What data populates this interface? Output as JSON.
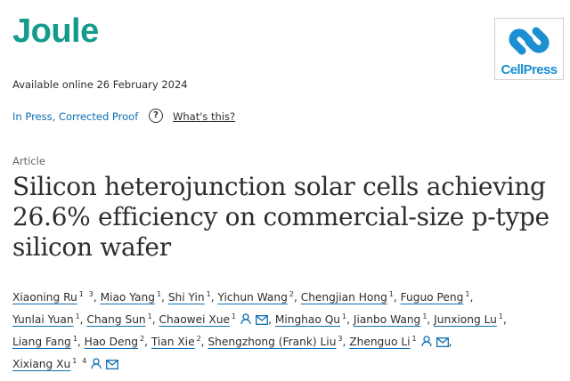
{
  "header": {
    "journal": "Joule",
    "publisher_logo": "CellPress",
    "available": "Available online 26 February 2024",
    "status": "In Press, Corrected Proof",
    "help_icon": "?",
    "help_link": "What's this?"
  },
  "article": {
    "type": "Article",
    "title": "Silicon heterojunction solar cells achieving 26.6% efficiency on commercial-size p-type silicon wafer",
    "author_separator": ",",
    "authors": [
      {
        "name": "Xiaoning Ru",
        "affiliations": [
          1,
          3
        ]
      },
      {
        "name": "Miao Yang",
        "affiliations": [
          1
        ]
      },
      {
        "name": "Shi Yin",
        "affiliations": [
          1
        ]
      },
      {
        "name": "Yichun Wang",
        "affiliations": [
          2
        ]
      },
      {
        "name": "Chengjian Hong",
        "affiliations": [
          1
        ]
      },
      {
        "name": "Fuguo Peng",
        "affiliations": [
          1
        ]
      },
      {
        "name": "Yunlai Yuan",
        "affiliations": [
          1
        ]
      },
      {
        "name": "Chang Sun",
        "affiliations": [
          1
        ]
      },
      {
        "name": "Chaowei Xue",
        "affiliations": [
          1
        ]
      },
      {
        "name": "Minghao Qu",
        "affiliations": [
          1
        ]
      },
      {
        "name": "Jianbo Wang",
        "affiliations": [
          1
        ]
      },
      {
        "name": "Junxiong Lu",
        "affiliations": [
          1
        ]
      },
      {
        "name": "Liang Fang",
        "affiliations": [
          1
        ]
      },
      {
        "name": "Hao Deng",
        "affiliations": [
          2
        ]
      },
      {
        "name": "Tian Xie",
        "affiliations": [
          2
        ]
      },
      {
        "name": "Shengzhong (Frank) Liu",
        "affiliations": [
          3
        ]
      },
      {
        "name": "Zhenguo Li",
        "affiliations": [
          1
        ]
      },
      {
        "name": "Xixiang Xu",
        "affiliations": [
          1,
          4
        ]
      }
    ]
  }
}
